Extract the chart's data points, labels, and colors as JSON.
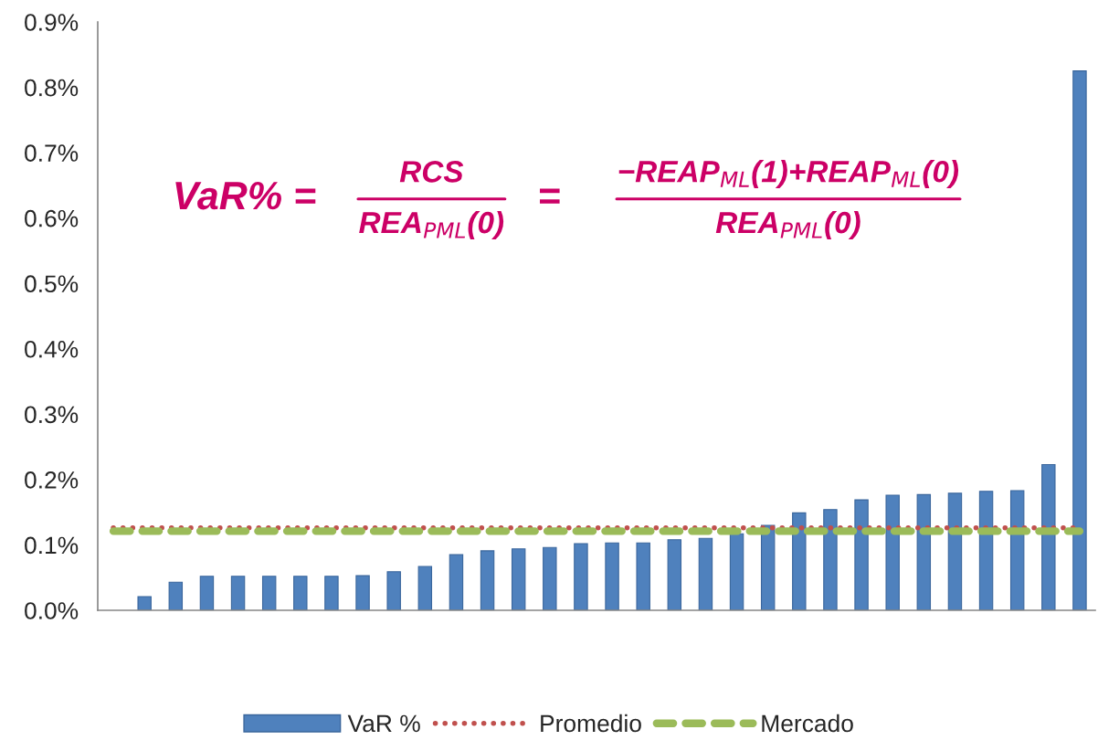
{
  "chart_data": {
    "type": "bar",
    "categories": [
      null,
      null,
      null,
      null,
      null,
      null,
      null,
      null,
      null,
      null,
      null,
      null,
      null,
      null,
      null,
      null,
      null,
      null,
      null,
      null,
      null,
      null,
      null,
      null,
      null,
      null,
      null,
      null,
      null,
      null,
      null,
      null
    ],
    "series": [
      {
        "name": "VaR %",
        "color": "#4f81bd",
        "values": [
          null,
          0.021,
          0.043,
          0.052,
          0.052,
          0.052,
          0.052,
          0.052,
          0.053,
          0.059,
          0.067,
          0.085,
          0.091,
          0.094,
          0.096,
          0.102,
          0.103,
          0.103,
          0.108,
          0.11,
          0.117,
          0.13,
          0.149,
          0.154,
          0.169,
          0.176,
          0.177,
          0.179,
          0.182,
          0.183,
          0.223,
          0.825
        ]
      },
      {
        "name": "Promedio",
        "type": "line",
        "line_style": "dotted",
        "color": "#c0504d",
        "values": [
          0.126,
          0.126,
          0.126,
          0.126,
          0.126,
          0.126,
          0.126,
          0.126,
          0.126,
          0.126,
          0.126,
          0.126,
          0.126,
          0.126,
          0.126,
          0.126,
          0.126,
          0.126,
          0.126,
          0.126,
          0.126,
          0.126,
          0.126,
          0.126,
          0.126,
          0.126,
          0.126,
          0.126,
          0.126,
          0.126,
          0.126,
          0.126
        ]
      },
      {
        "name": "Mercado",
        "type": "line",
        "line_style": "dashed",
        "color": "#9bbb59",
        "values": [
          0.121,
          0.121,
          0.121,
          0.121,
          0.121,
          0.121,
          0.121,
          0.121,
          0.121,
          0.121,
          0.121,
          0.121,
          0.121,
          0.121,
          0.121,
          0.121,
          0.121,
          0.121,
          0.121,
          0.121,
          0.121,
          0.121,
          0.121,
          0.121,
          0.121,
          0.121,
          0.121,
          0.121,
          0.121,
          0.121,
          0.121,
          0.121
        ]
      }
    ],
    "ylim": [
      0,
      0.9
    ],
    "yticks": [
      {
        "value": 0,
        "label": "0.0%"
      },
      {
        "value": 0.1,
        "label": "0.1%"
      },
      {
        "value": 0.2,
        "label": "0.2%"
      },
      {
        "value": 0.3,
        "label": "0.3%"
      },
      {
        "value": 0.4,
        "label": "0.4%"
      },
      {
        "value": 0.5,
        "label": "0.5%"
      },
      {
        "value": 0.6,
        "label": "0.6%"
      },
      {
        "value": 0.7,
        "label": "0.7%"
      },
      {
        "value": 0.8,
        "label": "0.8%"
      },
      {
        "value": 0.9,
        "label": "0.9%"
      }
    ],
    "tick_labels": "y",
    "grid": false,
    "legend": "bottom",
    "annotations": [
      "VaR% =",
      "RCS",
      "REA$_{PML}$(0)",
      "=",
      "−REAP$_{ML}$(1)+REAP$_{ML}$(0)",
      "REA$_{PML}$(0)"
    ]
  }
}
